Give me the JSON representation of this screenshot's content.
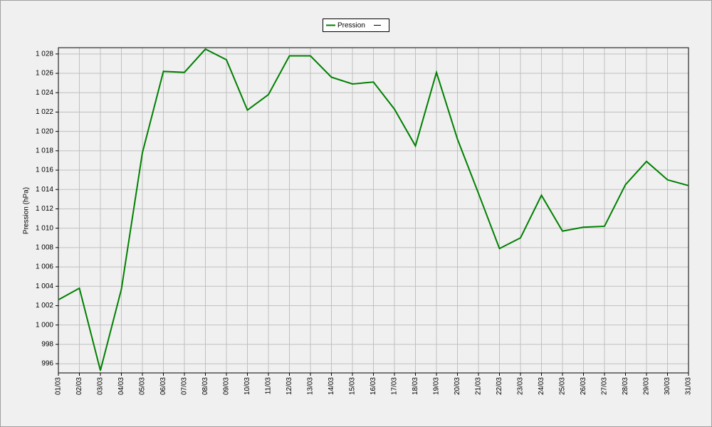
{
  "chart_data": {
    "type": "line",
    "y_label": "Pression (hPa)",
    "categories": [
      "01/03",
      "02/03",
      "03/03",
      "04/03",
      "05/03",
      "06/03",
      "07/03",
      "08/03",
      "09/03",
      "10/03",
      "11/03",
      "12/03",
      "13/03",
      "14/03",
      "15/03",
      "16/03",
      "17/03",
      "18/03",
      "19/03",
      "20/03",
      "21/03",
      "22/03",
      "23/03",
      "24/03",
      "25/03",
      "26/03",
      "27/03",
      "28/03",
      "29/03",
      "30/03",
      "31/03"
    ],
    "series": [
      {
        "name": "Pression",
        "color": "#008000",
        "values": [
          1002.6,
          1003.8,
          995.3,
          1003.7,
          1017.8,
          1026.2,
          1026.1,
          1028.5,
          1027.4,
          1022.2,
          1023.8,
          1027.8,
          1027.8,
          1025.6,
          1024.9,
          1025.1,
          1022.3,
          1018.5,
          1026.1,
          1019.2,
          1013.6,
          1007.9,
          1009.0,
          1013.4,
          1009.7,
          1010.1,
          1010.2,
          1014.5,
          1016.9,
          1015.0,
          1014.4
        ]
      }
    ],
    "ylim": [
      995.05,
      1028.65
    ],
    "yticks": [
      996,
      998,
      {
        "value": 1000,
        "label": "1 000"
      },
      {
        "value": 1002,
        "label": "1 002"
      },
      {
        "value": 1004,
        "label": "1 004"
      },
      {
        "value": 1006,
        "label": "1 006"
      },
      {
        "value": 1008,
        "label": "1 008"
      },
      {
        "value": 1010,
        "label": "1 010"
      },
      {
        "value": 1012,
        "label": "1 012"
      },
      {
        "value": 1014,
        "label": "1 014"
      },
      {
        "value": 1016,
        "label": "1 016"
      },
      {
        "value": 1018,
        "label": "1 018"
      },
      {
        "value": 1020,
        "label": "1 020"
      },
      {
        "value": 1022,
        "label": "1 022"
      },
      {
        "value": 1024,
        "label": "1 024"
      },
      {
        "value": 1026,
        "label": "1 026"
      },
      {
        "value": 1028,
        "label": "1 028"
      }
    ],
    "grid": true
  }
}
